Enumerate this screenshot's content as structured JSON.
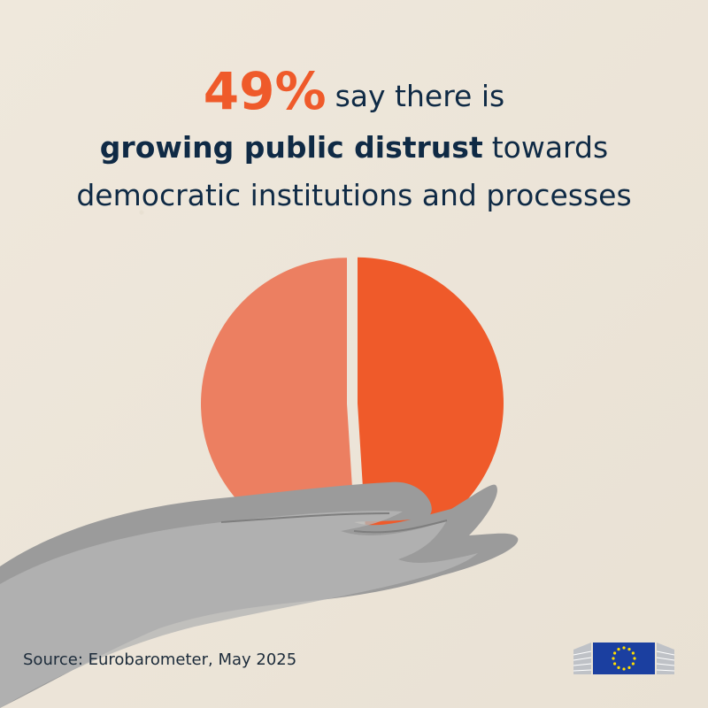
{
  "headline": {
    "percent": "49%",
    "line1_rest": "say there is",
    "line2_bold": "growing public distrust",
    "line2_rest": "towards",
    "line3": "democratic institutions and processes"
  },
  "source": "Source: Eurobarometer, May 2025",
  "colors": {
    "background": "#ede6da",
    "accent": "#ef5a2a",
    "accent_light": "#ec7f61",
    "text": "#0f2a45",
    "eu_blue": "#1b3fa0",
    "eu_gold": "#ffdd00"
  },
  "chart_data": {
    "type": "pie",
    "title": "",
    "slices": [
      {
        "value": 49,
        "color": "#ef5a2a"
      },
      {
        "value": 51,
        "color": "#ec7f61"
      }
    ]
  },
  "icons": [
    "hand-illustration",
    "eu-commission-logo"
  ]
}
